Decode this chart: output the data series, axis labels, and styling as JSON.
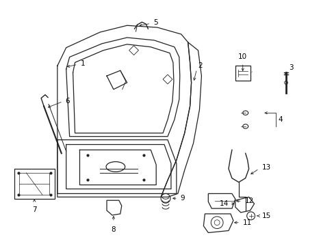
{
  "background_color": "#ffffff",
  "line_color": "#222222",
  "text_color": "#000000",
  "fig_width": 4.89,
  "fig_height": 3.6,
  "dpi": 100
}
